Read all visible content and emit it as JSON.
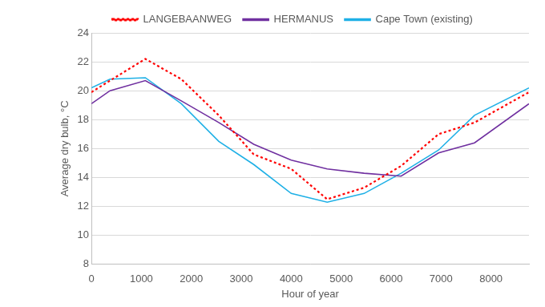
{
  "chart_data": {
    "type": "line",
    "x_label": "Hour of year",
    "y_label": "Average dry bulb, °C",
    "x": [
      0,
      372,
      1080,
      1800,
      2550,
      3250,
      4000,
      4720,
      5460,
      6200,
      6950,
      7670,
      8760
    ],
    "series": [
      {
        "name": "LANGEBAANWEG",
        "color": "#ff0000",
        "line_style": "dotted",
        "values": [
          19.9,
          20.7,
          22.2,
          20.8,
          18.3,
          15.6,
          14.6,
          12.5,
          13.3,
          14.8,
          17.0,
          17.8,
          19.9
        ]
      },
      {
        "name": "HERMANUS",
        "color": "#7030a0",
        "line_style": "solid",
        "values": [
          19.1,
          20.0,
          20.7,
          19.3,
          17.8,
          16.3,
          15.2,
          14.6,
          14.3,
          14.1,
          15.7,
          16.4,
          19.1
        ]
      },
      {
        "name": "Cape Town (existing)",
        "color": "#1fb0e6",
        "line_style": "solid",
        "values": [
          20.2,
          20.8,
          20.9,
          19.1,
          16.5,
          14.9,
          12.9,
          12.3,
          12.9,
          14.3,
          15.9,
          18.3,
          20.2
        ]
      }
    ],
    "xlim": [
      0,
      8760
    ],
    "xticks": [
      0,
      1000,
      2000,
      3000,
      4000,
      5000,
      6000,
      7000,
      8000
    ],
    "ylim": [
      8,
      24
    ],
    "yticks": [
      8,
      10,
      12,
      14,
      16,
      18,
      20,
      22,
      24
    ],
    "grid": true,
    "legend": "top"
  }
}
